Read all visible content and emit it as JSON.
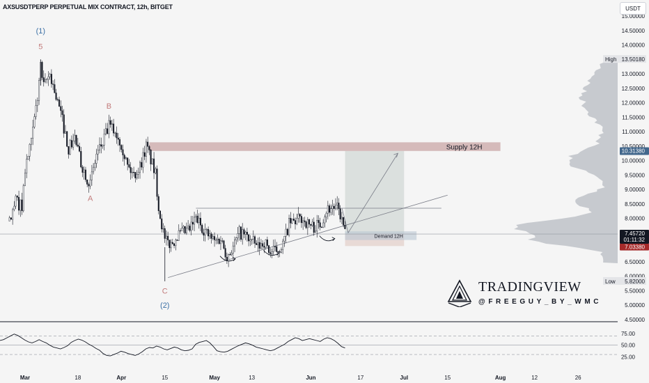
{
  "title": "AXSUSDTPERP PERPETUAL MIX CONTRACT, 12h, BITGET",
  "currency": "USDT",
  "watermark": {
    "brand": "TRADINGVIEW",
    "author": "@FREEGUY_BY_WMC"
  },
  "colors": {
    "up": "#131722",
    "down": "#131722",
    "supply": "#c9a6a6",
    "demand": "#b9c7d2",
    "target": "#d5dbd8",
    "stop": "#e7d7d3",
    "wave_label": "#c27b7b",
    "wave_degree": "#3a6fa5",
    "price_badge": "#42678c",
    "last_price_badge": "#131722",
    "stop_price_badge": "#a52a2a",
    "volume_profile": "#b7bbc2"
  },
  "chart_data": [
    {
      "type": "candlestick",
      "y_axis": {
        "ticks": [
          "15.00000",
          "14.50000",
          "14.00000",
          "13.50000",
          "13.00000",
          "12.50000",
          "12.00000",
          "11.50000",
          "11.00000",
          "10.50000",
          "10.00000",
          "9.50000",
          "9.00000",
          "8.50000",
          "8.00000",
          "7.50000",
          "7.00000",
          "6.50000",
          "6.00000",
          "5.50000",
          "5.00000",
          "4.50000"
        ],
        "range": [
          4.5,
          15.5
        ]
      },
      "x_axis": {
        "ticks": [
          {
            "label": "Mar",
            "bold": true,
            "date": "03-01"
          },
          {
            "label": "18",
            "bold": false,
            "date": "03-18"
          },
          {
            "label": "Apr",
            "bold": true,
            "date": "04-01"
          },
          {
            "label": "15",
            "bold": false,
            "date": "04-15"
          },
          {
            "label": "May",
            "bold": true,
            "date": "05-01"
          },
          {
            "label": "13",
            "bold": false,
            "date": "05-13"
          },
          {
            "label": "Jun",
            "bold": true,
            "date": "06-01"
          },
          {
            "label": "17",
            "bold": false,
            "date": "06-17"
          },
          {
            "label": "Jul",
            "bold": true,
            "date": "07-01"
          },
          {
            "label": "15",
            "bold": false,
            "date": "07-15"
          },
          {
            "label": "Aug",
            "bold": true,
            "date": "08-01"
          },
          {
            "label": "12",
            "bold": false,
            "date": "08-12"
          },
          {
            "label": "26",
            "bold": false,
            "date": "08-26"
          }
        ]
      },
      "price_path": [
        [
          "02-24",
          7.9
        ],
        [
          "02-26",
          8.6
        ],
        [
          "02-28",
          8.4
        ],
        [
          "03-01",
          9.7
        ],
        [
          "03-03",
          10.6
        ],
        [
          "03-05",
          12.2
        ],
        [
          "03-06",
          13.3
        ],
        [
          "03-07",
          12.5
        ],
        [
          "03-09",
          13.0
        ],
        [
          "03-11",
          12.2
        ],
        [
          "03-13",
          11.4
        ],
        [
          "03-15",
          10.4
        ],
        [
          "03-17",
          10.8
        ],
        [
          "03-19",
          9.9
        ],
        [
          "03-21",
          9.4
        ],
        [
          "03-22",
          9.2
        ],
        [
          "03-24",
          10.2
        ],
        [
          "03-26",
          10.6
        ],
        [
          "03-28",
          11.2
        ],
        [
          "03-30",
          11.0
        ],
        [
          "04-01",
          10.6
        ],
        [
          "04-03",
          9.8
        ],
        [
          "04-05",
          9.5
        ],
        [
          "04-07",
          9.8
        ],
        [
          "04-09",
          10.5
        ],
        [
          "04-10",
          10.2
        ],
        [
          "04-12",
          9.5
        ],
        [
          "04-13",
          8.4
        ],
        [
          "04-14",
          7.8
        ],
        [
          "04-15",
          7.2
        ],
        [
          "04-17",
          7.1
        ],
        [
          "04-19",
          7.4
        ],
        [
          "04-21",
          7.5
        ],
        [
          "04-23",
          7.6
        ],
        [
          "04-25",
          8.0
        ],
        [
          "04-27",
          7.7
        ],
        [
          "04-29",
          7.4
        ],
        [
          "05-01",
          7.2
        ],
        [
          "05-03",
          7.3
        ],
        [
          "05-05",
          6.7
        ],
        [
          "05-07",
          7.0
        ],
        [
          "05-09",
          7.5
        ],
        [
          "05-11",
          7.4
        ],
        [
          "05-13",
          7.2
        ],
        [
          "05-15",
          7.0
        ],
        [
          "05-17",
          7.2
        ],
        [
          "05-19",
          6.8
        ],
        [
          "05-21",
          6.9
        ],
        [
          "05-23",
          7.1
        ],
        [
          "05-25",
          7.8
        ],
        [
          "05-27",
          7.9
        ],
        [
          "05-29",
          8.0
        ],
        [
          "05-31",
          7.8
        ],
        [
          "06-02",
          7.7
        ],
        [
          "06-04",
          7.8
        ],
        [
          "06-06",
          8.3
        ],
        [
          "06-08",
          8.4
        ],
        [
          "06-10",
          8.3
        ],
        [
          "06-11",
          7.9
        ],
        [
          "06-12",
          7.5
        ]
      ],
      "series": [
        {
          "name": "",
          "values": []
        }
      ],
      "current": {
        "price": "7.45720",
        "countdown": "01:11:32"
      },
      "stop_price": "7.03380",
      "high": {
        "label": "High",
        "value": "13.50180"
      },
      "low": {
        "label": "Low",
        "value": "5.82000"
      },
      "supply_price": "10.31380",
      "zones": [
        {
          "label": "Supply 12H",
          "from": "04-10",
          "to": "08-01",
          "low": 10.33,
          "high": 10.63
        },
        {
          "label": "Demand 12H",
          "from": "06-12",
          "to": "07-05",
          "low": 7.25,
          "high": 7.55
        }
      ],
      "position": {
        "from": "06-12",
        "to": "07-01",
        "entry": 7.46,
        "target": 10.33,
        "stop": 7.04
      },
      "wave_labels": [
        {
          "text": "(1)",
          "date": "03-06",
          "price": 14.4,
          "degree": true
        },
        {
          "text": "5",
          "date": "03-06",
          "price": 13.85,
          "degree": false
        },
        {
          "text": "B",
          "date": "03-28",
          "price": 11.8,
          "degree": false
        },
        {
          "text": "A",
          "date": "03-22",
          "price": 8.6,
          "degree": false
        },
        {
          "text": "C",
          "date": "04-15",
          "price": 5.4,
          "degree": false
        },
        {
          "text": "(2)",
          "date": "04-15",
          "price": 4.9,
          "degree": true
        }
      ]
    },
    {
      "type": "line",
      "y_axis": {
        "ticks": [
          "75.00",
          "50.00",
          "25.00"
        ],
        "range": [
          20,
          90
        ],
        "levels": [
          70,
          50,
          30
        ]
      },
      "series": [
        {
          "name": "",
          "values": [
            60,
            62,
            66,
            70,
            74,
            71,
            66,
            61,
            57,
            55,
            58,
            62,
            58,
            55,
            50,
            46,
            44,
            42,
            45,
            49,
            56,
            60,
            63,
            61,
            57,
            52,
            48,
            43,
            39,
            32,
            28,
            27,
            30,
            33,
            37,
            35,
            32,
            30,
            28,
            31,
            36,
            42,
            45,
            44,
            48,
            46,
            42,
            40,
            43,
            46,
            44,
            40,
            38,
            39,
            42,
            52,
            56,
            58,
            60,
            55,
            47,
            38,
            36,
            35,
            37,
            41,
            45,
            49,
            52,
            55,
            53,
            50,
            46,
            44,
            42,
            40,
            38,
            40,
            44,
            48,
            52,
            58,
            62,
            66,
            64,
            60,
            62,
            64,
            62,
            60,
            58,
            63,
            66,
            64,
            60,
            54,
            47,
            44
          ]
        }
      ]
    }
  ]
}
